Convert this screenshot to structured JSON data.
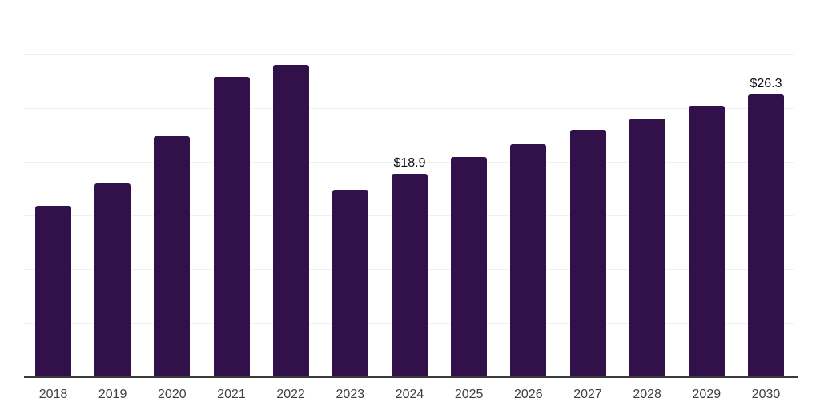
{
  "chart_data": {
    "type": "bar",
    "title": "",
    "xlabel": "",
    "ylabel": "",
    "categories": [
      "2018",
      "2019",
      "2020",
      "2021",
      "2022",
      "2023",
      "2024",
      "2025",
      "2026",
      "2027",
      "2028",
      "2029",
      "2030"
    ],
    "values": [
      15.9,
      18.0,
      22.4,
      28.0,
      29.1,
      17.4,
      18.9,
      20.5,
      21.7,
      23.0,
      24.1,
      25.3,
      26.3
    ],
    "data_labels": {
      "2024": "$18.9",
      "2030": "$26.3"
    },
    "ylim": [
      0,
      35
    ],
    "grid_step": 5,
    "grid": "horizontal-only",
    "legend_position": "none",
    "colors": {
      "bar": "#32114a",
      "gridline": "#f0f0f0",
      "axis_line": "#3c3c3c",
      "tick_label": "#3f3f3f",
      "data_label": "#0d0d0d",
      "background": "#ffffff"
    }
  }
}
